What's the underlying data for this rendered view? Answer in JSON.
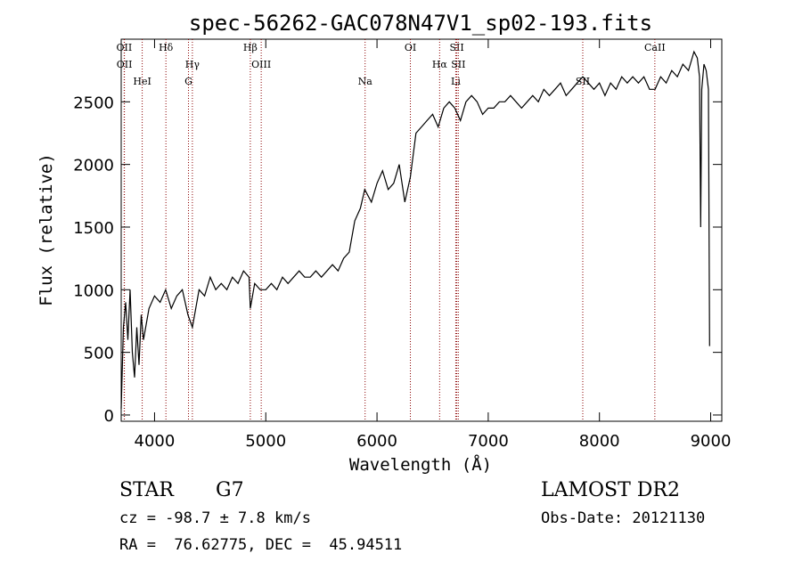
{
  "chart_data": {
    "type": "line",
    "title": "spec-56262-GAC078N47V1_sp02-193.fits",
    "xlabel": "Wavelength (Å)",
    "ylabel": "Flux (relative)",
    "xlim": [
      3700,
      9100
    ],
    "ylim": [
      -50,
      3000
    ],
    "x_ticks": [
      4000,
      5000,
      6000,
      7000,
      8000,
      9000
    ],
    "y_ticks": [
      0,
      500,
      1000,
      1500,
      2000,
      2500
    ],
    "grid": false,
    "line_color": "#000000",
    "marker_color": "#8b0000",
    "series": [
      {
        "x": [
          3700,
          3720,
          3740,
          3760,
          3780,
          3800,
          3820,
          3840,
          3860,
          3880,
          3900,
          3950,
          4000,
          4050,
          4100,
          4150,
          4200,
          4250,
          4300,
          4340,
          4400,
          4450,
          4500,
          4550,
          4600,
          4650,
          4700,
          4750,
          4800,
          4850,
          4861,
          4900,
          4950,
          5000,
          5050,
          5100,
          5150,
          5200,
          5250,
          5300,
          5350,
          5400,
          5450,
          5500,
          5550,
          5600,
          5650,
          5700,
          5750,
          5800,
          5850,
          5890,
          5950,
          6000,
          6050,
          6100,
          6150,
          6200,
          6250,
          6300,
          6350,
          6400,
          6450,
          6500,
          6550,
          6600,
          6650,
          6700,
          6750,
          6800,
          6850,
          6900,
          6950,
          7000,
          7050,
          7100,
          7150,
          7200,
          7250,
          7300,
          7350,
          7400,
          7450,
          7500,
          7550,
          7600,
          7650,
          7700,
          7750,
          7800,
          7850,
          7900,
          7950,
          8000,
          8050,
          8100,
          8150,
          8200,
          8250,
          8300,
          8350,
          8400,
          8450,
          8500,
          8550,
          8600,
          8650,
          8700,
          8750,
          8800,
          8850,
          8880,
          8900,
          8910,
          8920,
          8940,
          8960,
          8980,
          8990
        ],
        "y": [
          50,
          700,
          900,
          600,
          1000,
          500,
          300,
          700,
          400,
          800,
          600,
          850,
          950,
          900,
          1000,
          850,
          950,
          1000,
          800,
          700,
          1000,
          950,
          1100,
          1000,
          1050,
          1000,
          1100,
          1050,
          1150,
          1100,
          850,
          1050,
          1000,
          1000,
          1050,
          1000,
          1100,
          1050,
          1100,
          1150,
          1100,
          1100,
          1150,
          1100,
          1150,
          1200,
          1150,
          1250,
          1300,
          1550,
          1650,
          1800,
          1700,
          1850,
          1950,
          1800,
          1850,
          2000,
          1700,
          1900,
          2250,
          2300,
          2350,
          2400,
          2300,
          2450,
          2500,
          2450,
          2350,
          2500,
          2550,
          2500,
          2400,
          2450,
          2450,
          2500,
          2500,
          2550,
          2500,
          2450,
          2500,
          2550,
          2500,
          2600,
          2550,
          2600,
          2650,
          2550,
          2600,
          2650,
          2700,
          2650,
          2600,
          2650,
          2550,
          2650,
          2600,
          2700,
          2650,
          2700,
          2650,
          2700,
          2600,
          2600,
          2700,
          2650,
          2750,
          2700,
          2800,
          2750,
          2900,
          2850,
          2700,
          1500,
          2600,
          2800,
          2750,
          2600,
          550
        ]
      }
    ],
    "line_markers": [
      {
        "label": "OII",
        "x": 3727
      },
      {
        "label": "OII",
        "x": 3729
      },
      {
        "label": "HeI",
        "x": 3889
      },
      {
        "label": "Hδ",
        "x": 4102
      },
      {
        "label": "Hγ",
        "x": 4340
      },
      {
        "label": "G",
        "x": 4305
      },
      {
        "label": "Hβ",
        "x": 4861
      },
      {
        "label": "OIII",
        "x": 4959
      },
      {
        "label": "Na",
        "x": 5893
      },
      {
        "label": "OI",
        "x": 6300
      },
      {
        "label": "Hα",
        "x": 6563
      },
      {
        "label": "Li",
        "x": 6708
      },
      {
        "label": "SII",
        "x": 6717
      },
      {
        "label": "SII",
        "x": 6731
      },
      {
        "label": "SII",
        "x": 7850
      },
      {
        "label": "CaII",
        "x": 8498
      }
    ]
  },
  "footer": {
    "object_type": "STAR",
    "subclass": "G7",
    "survey": "LAMOST DR2",
    "redshift": "cz = -98.7 ± 7.8 km/s",
    "obs_date": "Obs-Date: 20121130",
    "coords": "RA =  76.62775, DEC =  45.94511"
  }
}
